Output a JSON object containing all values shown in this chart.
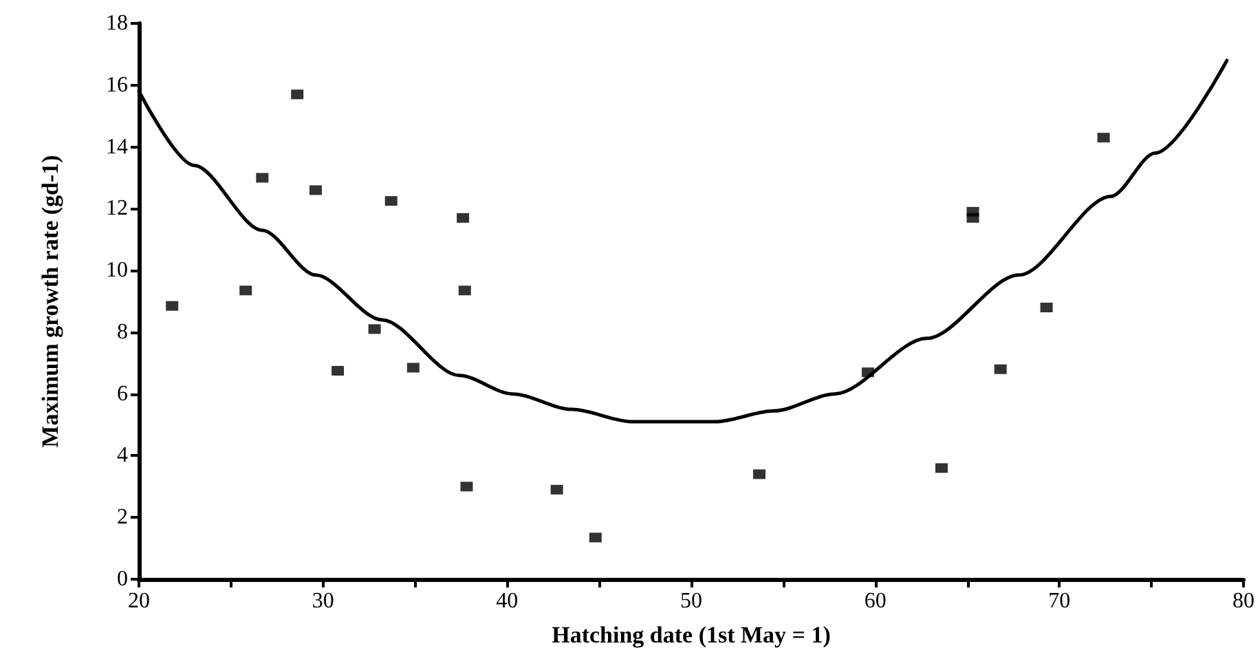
{
  "chart_data": {
    "type": "scatter",
    "xlabel": "Hatching date (1st May = 1)",
    "ylabel": "Maximum growth rate (gd-1)",
    "xlim": [
      20,
      80
    ],
    "xticks": [
      20,
      {
        "value": 25,
        "label": null
      },
      30,
      {
        "value": 35,
        "label": null
      },
      40,
      {
        "value": 45,
        "label": null
      },
      50,
      {
        "value": 55,
        "label": null
      },
      60,
      {
        "value": 65,
        "label": null
      },
      70,
      {
        "value": 75,
        "label": null
      },
      80
    ],
    "ylim": [
      0,
      18
    ],
    "yticks": [
      0,
      2,
      4,
      6,
      8,
      10,
      12,
      14,
      16,
      18
    ],
    "grid": false,
    "series": [
      {
        "color": "#000000",
        "marker": "square",
        "x": [
          21.8,
          25.8,
          26.7,
          28.6,
          29.6,
          30.8,
          32.8,
          33.7,
          34.9,
          37.6,
          37.7,
          37.8,
          42.7,
          44.8,
          53.7,
          59.6,
          63.6,
          65.3,
          65.3,
          66.8,
          69.3,
          72.4
        ],
        "values": [
          8.85,
          9.35,
          13.0,
          15.7,
          12.6,
          6.75,
          8.1,
          12.25,
          6.85,
          11.7,
          9.35,
          3.0,
          2.9,
          1.35,
          3.4,
          6.7,
          3.6,
          11.9,
          11.7,
          6.8,
          8.8,
          14.3
        ]
      },
      {
        "type": "line",
        "color": "#000000",
        "marker": "none",
        "line_style": "solid",
        "x": [
          20,
          23,
          26.7,
          29.6,
          33.2,
          37.4,
          40.3,
          43.5,
          46.8,
          51.3,
          54.5,
          57.8,
          62.8,
          67.8,
          72.8,
          75.2,
          79.1
        ],
        "values": [
          15.8,
          13.4,
          11.3,
          9.85,
          8.4,
          6.6,
          6.0,
          5.5,
          5.1,
          5.1,
          5.45,
          6.0,
          7.8,
          9.85,
          12.4,
          13.8,
          16.8
        ]
      }
    ]
  }
}
